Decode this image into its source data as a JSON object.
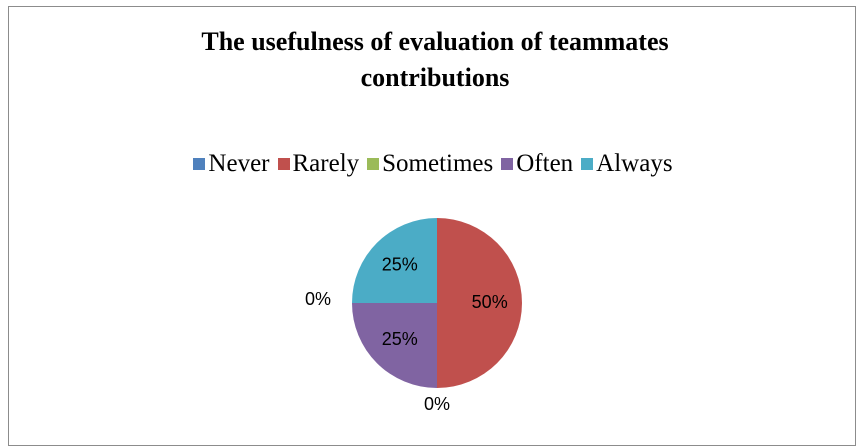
{
  "chart_data": {
    "type": "pie",
    "title": "The usefulness of evaluation of teammates contributions",
    "categories": [
      "Never",
      "Rarely",
      "Sometimes",
      "Often",
      "Always"
    ],
    "values": [
      0,
      50,
      0,
      25,
      25
    ],
    "value_labels": [
      "0%",
      "50%",
      "0%",
      "25%",
      "25%"
    ],
    "colors": [
      "#4f81bd",
      "#c0504d",
      "#9bbb59",
      "#8064a2",
      "#4bacc6"
    ],
    "legend": "top"
  }
}
